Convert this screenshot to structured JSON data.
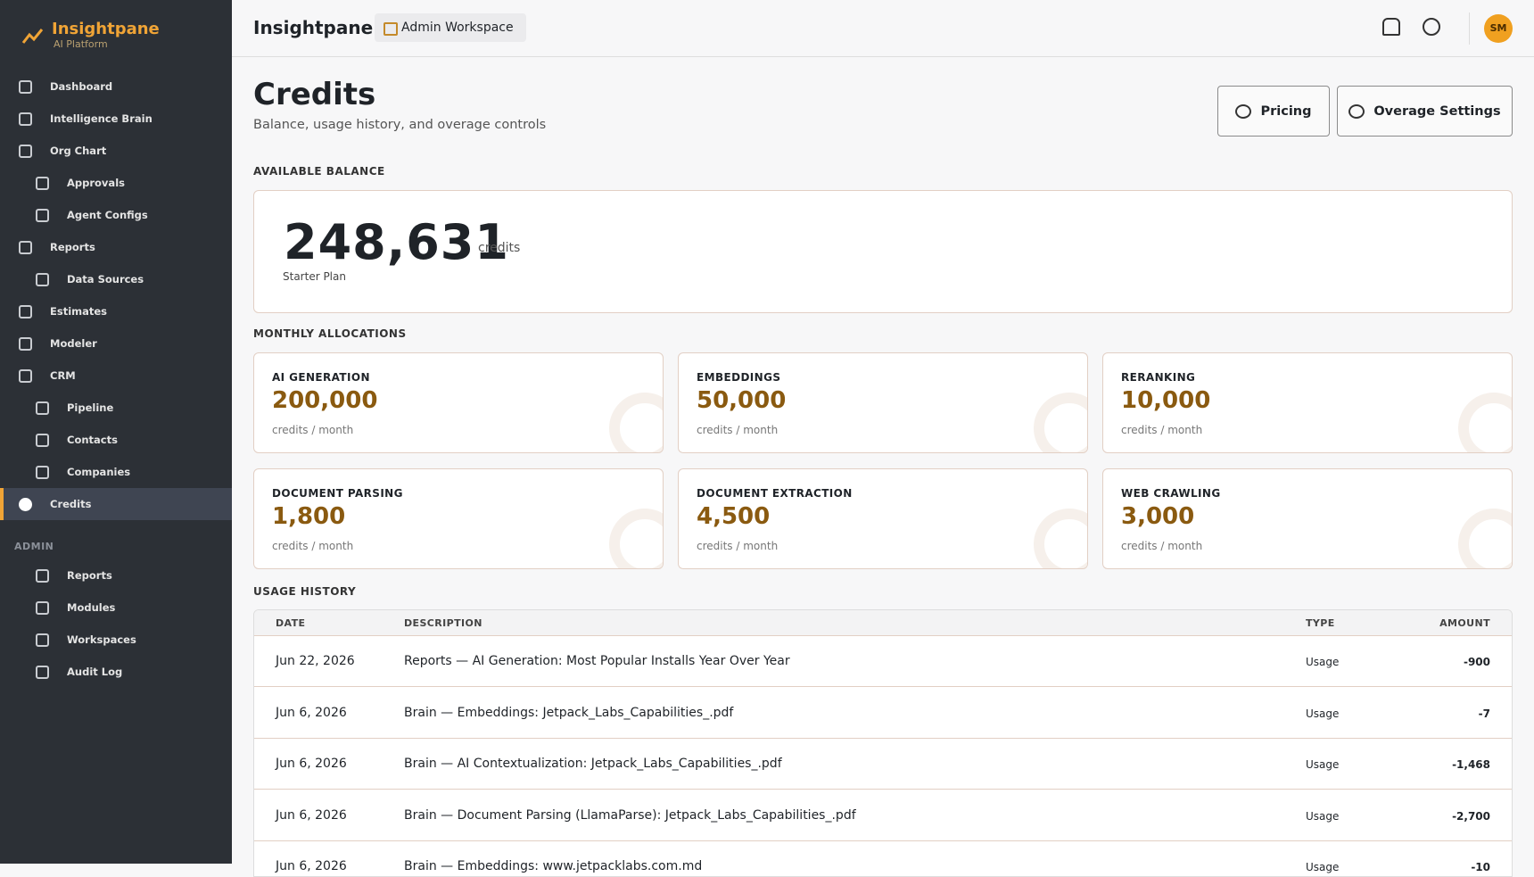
{
  "sidebar": {
    "brand": "Insightpane",
    "tagline": "AI Platform",
    "nav": [
      {
        "label": "Dashboard",
        "sub": false
      },
      {
        "label": "Intelligence Brain",
        "sub": false
      },
      {
        "label": "Org Chart",
        "sub": false
      },
      {
        "label": "Approvals",
        "sub": true
      },
      {
        "label": "Agent Configs",
        "sub": true
      },
      {
        "label": "Reports",
        "sub": false
      },
      {
        "label": "Data Sources",
        "sub": true
      },
      {
        "label": "Estimates",
        "sub": false
      },
      {
        "label": "Modeler",
        "sub": false
      },
      {
        "label": "CRM",
        "sub": false
      },
      {
        "label": "Pipeline",
        "sub": true
      },
      {
        "label": "Contacts",
        "sub": true
      },
      {
        "label": "Companies",
        "sub": true
      },
      {
        "label": "Credits",
        "sub": false,
        "active": true
      }
    ],
    "admin_heading": "ADMIN",
    "admin": [
      {
        "label": "Reports"
      },
      {
        "label": "Modules"
      },
      {
        "label": "Workspaces"
      },
      {
        "label": "Audit Log"
      }
    ]
  },
  "header": {
    "title": "Insightpane",
    "workspace": "Admin Workspace",
    "avatar": "SM"
  },
  "page": {
    "title": "Credits",
    "subtitle": "Balance, usage history, and overage controls",
    "buttons": [
      "Pricing",
      "Overage Settings"
    ]
  },
  "balance": {
    "heading": "AVAILABLE BALANCE",
    "amount": "248,631",
    "unit": "credits",
    "plan": "Starter Plan"
  },
  "allocations": {
    "heading": "MONTHLY ALLOCATIONS",
    "unit": "credits / month",
    "items": [
      {
        "name": "AI GENERATION",
        "amount": "200,000"
      },
      {
        "name": "EMBEDDINGS",
        "amount": "50,000"
      },
      {
        "name": "RERANKING",
        "amount": "10,000"
      },
      {
        "name": "DOCUMENT PARSING",
        "amount": "1,800"
      },
      {
        "name": "DOCUMENT EXTRACTION",
        "amount": "4,500"
      },
      {
        "name": "WEB CRAWLING",
        "amount": "3,000"
      }
    ]
  },
  "usage": {
    "heading": "USAGE HISTORY",
    "columns": [
      "DATE",
      "DESCRIPTION",
      "TYPE",
      "AMOUNT"
    ],
    "rows": [
      [
        "Jun 22, 2026",
        "Reports — AI Generation: Most Popular Installs Year Over Year",
        "Usage",
        "-900"
      ],
      [
        "Jun 6, 2026",
        "Brain — Embeddings: Jetpack_Labs_Capabilities_.pdf",
        "Usage",
        "-7"
      ],
      [
        "Jun 6, 2026",
        "Brain — AI Contextualization: Jetpack_Labs_Capabilities_.pdf",
        "Usage",
        "-1,468"
      ],
      [
        "Jun 6, 2026",
        "Brain — Document Parsing (LlamaParse): Jetpack_Labs_Capabilities_.pdf",
        "Usage",
        "-2,700"
      ],
      [
        "Jun 6, 2026",
        "Brain — Embeddings: www.jetpacklabs.com.md",
        "Usage",
        "-10"
      ]
    ]
  }
}
